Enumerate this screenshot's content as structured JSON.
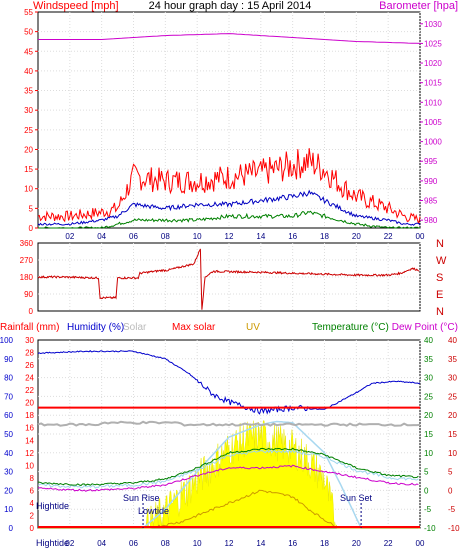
{
  "title": "24 hour graph day : 15 April 2014",
  "x_ticks": [
    "02",
    "04",
    "06",
    "08",
    "10",
    "12",
    "14",
    "16",
    "18",
    "20",
    "22",
    "00"
  ],
  "wind_panel": {
    "left_label": "Windspeed [mph]",
    "right_label": "Barometer [hpa]",
    "left_ticks": [
      "55",
      "50",
      "45",
      "40",
      "35",
      "30",
      "25",
      "20",
      "15",
      "10",
      "5",
      "0"
    ],
    "right_ticks": [
      "1030",
      "1025",
      "1020",
      "1015",
      "1010",
      "1005",
      "1000",
      "995",
      "990",
      "985",
      "980"
    ]
  },
  "dir_panel": {
    "left_ticks": [
      "360",
      "270",
      "180",
      "90",
      "0"
    ],
    "right_letters": [
      "N",
      "W",
      "S",
      "E",
      "N"
    ]
  },
  "weather_panel": {
    "labels": {
      "rain": "Rainfall (mm)",
      "humidity": "Humidity (%)",
      "solar": "Solar",
      "max_solar": "Max solar",
      "uv": "UV",
      "temperature": "Temperature (°C)",
      "dewpoint": "Dew Point (°C)"
    },
    "humidity_ticks": [
      "100",
      "90",
      "80",
      "70",
      "60",
      "50",
      "40",
      "30",
      "20",
      "10",
      "0"
    ],
    "solar_ticks": [
      "30",
      "28",
      "26",
      "24",
      "22",
      "20",
      "18",
      "16",
      "14",
      "12",
      "10",
      "8",
      "6",
      "4",
      "2",
      "0"
    ],
    "temp_ticks": [
      "40",
      "35",
      "30",
      "25",
      "20",
      "15",
      "10",
      "5",
      "0",
      "-5",
      "-10"
    ],
    "annotations": {
      "hightide_top": "Hightide",
      "sunrise": "Sun Rise",
      "lowtide": "Lowtide",
      "sunset": "Sun Set",
      "hightide_bottom": "Hightide"
    }
  },
  "colors": {
    "wind": "#ff0000",
    "average_wind": "#0000c0",
    "gust_green": "#008000",
    "barometer": "#cc00cc",
    "direction": "#cc0000",
    "humidity": "#0000cc",
    "max_solar": "#a8d8f0",
    "solar_fill": "#ffff00",
    "temperature": "#008000",
    "dewpoint": "#cc00cc",
    "uv": "#cc9900",
    "rain": "#ff0000"
  },
  "chart_data": [
    {
      "type": "line",
      "name": "wind",
      "x_unit": "hour",
      "xlim": [
        0,
        24
      ],
      "ylim": [
        0,
        55
      ],
      "y2lim": [
        978,
        1033
      ],
      "barometer": {
        "x": [
          0,
          4,
          8,
          12,
          16,
          20,
          24
        ],
        "values": [
          1026,
          1026,
          1027,
          1027.5,
          1026.5,
          1025.5,
          1025
        ]
      },
      "gust": {
        "x": [
          0,
          2,
          4,
          5,
          6,
          8,
          10,
          12,
          14,
          16,
          17,
          18,
          19,
          20,
          22,
          23,
          24
        ],
        "values": [
          3,
          3,
          4,
          5,
          13,
          12,
          12,
          13,
          14,
          16,
          17,
          15,
          11,
          8,
          5,
          3,
          2
        ]
      },
      "average": {
        "x": [
          0,
          2,
          4,
          5,
          6,
          8,
          10,
          12,
          14,
          16,
          17,
          18,
          19,
          20,
          22,
          23,
          24
        ],
        "values": [
          1,
          1,
          2,
          3,
          6,
          5,
          6,
          6,
          7,
          8,
          9,
          7,
          5,
          3,
          2,
          1,
          1
        ]
      },
      "lull": {
        "x": [
          0,
          2,
          4,
          6,
          8,
          10,
          12,
          14,
          16,
          17,
          18,
          19,
          20,
          22,
          24
        ],
        "values": [
          0,
          0,
          0,
          2,
          2,
          2,
          3,
          3,
          3,
          4,
          3,
          2,
          1,
          0,
          0
        ]
      }
    },
    {
      "type": "line",
      "name": "wind_direction",
      "x_unit": "hour",
      "xlim": [
        0,
        24
      ],
      "ylim": [
        0,
        360
      ],
      "x": [
        0,
        1.5,
        3.8,
        3.9,
        4.9,
        5,
        6.3,
        6.4,
        7.8,
        8.1,
        9.8,
        10.2,
        10.3,
        10.5,
        11,
        14,
        16,
        18,
        20,
        22,
        22.8,
        23.5,
        24
      ],
      "values": [
        180,
        180,
        175,
        70,
        70,
        175,
        175,
        200,
        215,
        215,
        250,
        330,
        10,
        180,
        210,
        205,
        200,
        195,
        190,
        190,
        200,
        225,
        215
      ]
    },
    {
      "type": "area",
      "name": "weather",
      "x_unit": "hour",
      "xlim": [
        0,
        24
      ],
      "humidity_lim": [
        0,
        100
      ],
      "temp_lim": [
        -10,
        40
      ],
      "solar_lim": [
        0,
        30
      ],
      "humidity": {
        "x": [
          0,
          3,
          6,
          8,
          9.5,
          11,
          12,
          14,
          16,
          18,
          20,
          21,
          22.5,
          24
        ],
        "values": [
          93,
          94,
          94,
          90,
          82,
          71,
          67,
          62,
          64,
          63,
          72,
          77,
          78,
          77
        ]
      },
      "max_solar": {
        "x": [
          0,
          6.6,
          8,
          10,
          12,
          14,
          15,
          16,
          18,
          19,
          20.3,
          24
        ],
        "values": [
          0,
          0,
          3,
          9,
          14.5,
          16.5,
          17,
          16.8,
          12,
          7,
          0,
          0
        ]
      },
      "solar": {
        "x": [
          0,
          6.6,
          8,
          10,
          11,
          12,
          13,
          14,
          15,
          16,
          17,
          18,
          18.8,
          24
        ],
        "values": [
          0,
          0,
          3,
          8,
          10.5,
          13,
          14.5,
          15,
          14,
          13,
          11,
          8,
          0,
          0
        ]
      },
      "temperature": {
        "x": [
          0,
          3,
          6,
          8,
          10,
          12,
          14,
          16,
          18,
          20,
          22,
          24
        ],
        "values": [
          2,
          1.5,
          2,
          3,
          6,
          10,
          11,
          11,
          9.5,
          6,
          4,
          3.5
        ]
      },
      "dewpoint": {
        "x": [
          0,
          3,
          6,
          8,
          10,
          12,
          14,
          16,
          18,
          20,
          22,
          24
        ],
        "values": [
          0.5,
          0,
          0.5,
          1.5,
          4,
          6,
          6,
          6.5,
          5,
          3.5,
          2,
          1.5
        ]
      },
      "uv": {
        "x": [
          0,
          7,
          9,
          11,
          13,
          14,
          16,
          17,
          18.5,
          19,
          24
        ],
        "values": [
          0,
          0,
          1,
          3,
          5,
          6,
          5,
          3,
          0.5,
          0,
          0
        ]
      },
      "max_temp_line": 22,
      "max_humidity_line": 55,
      "rainfall": {
        "x": [
          0,
          24
        ],
        "values": [
          0,
          0
        ]
      }
    }
  ]
}
